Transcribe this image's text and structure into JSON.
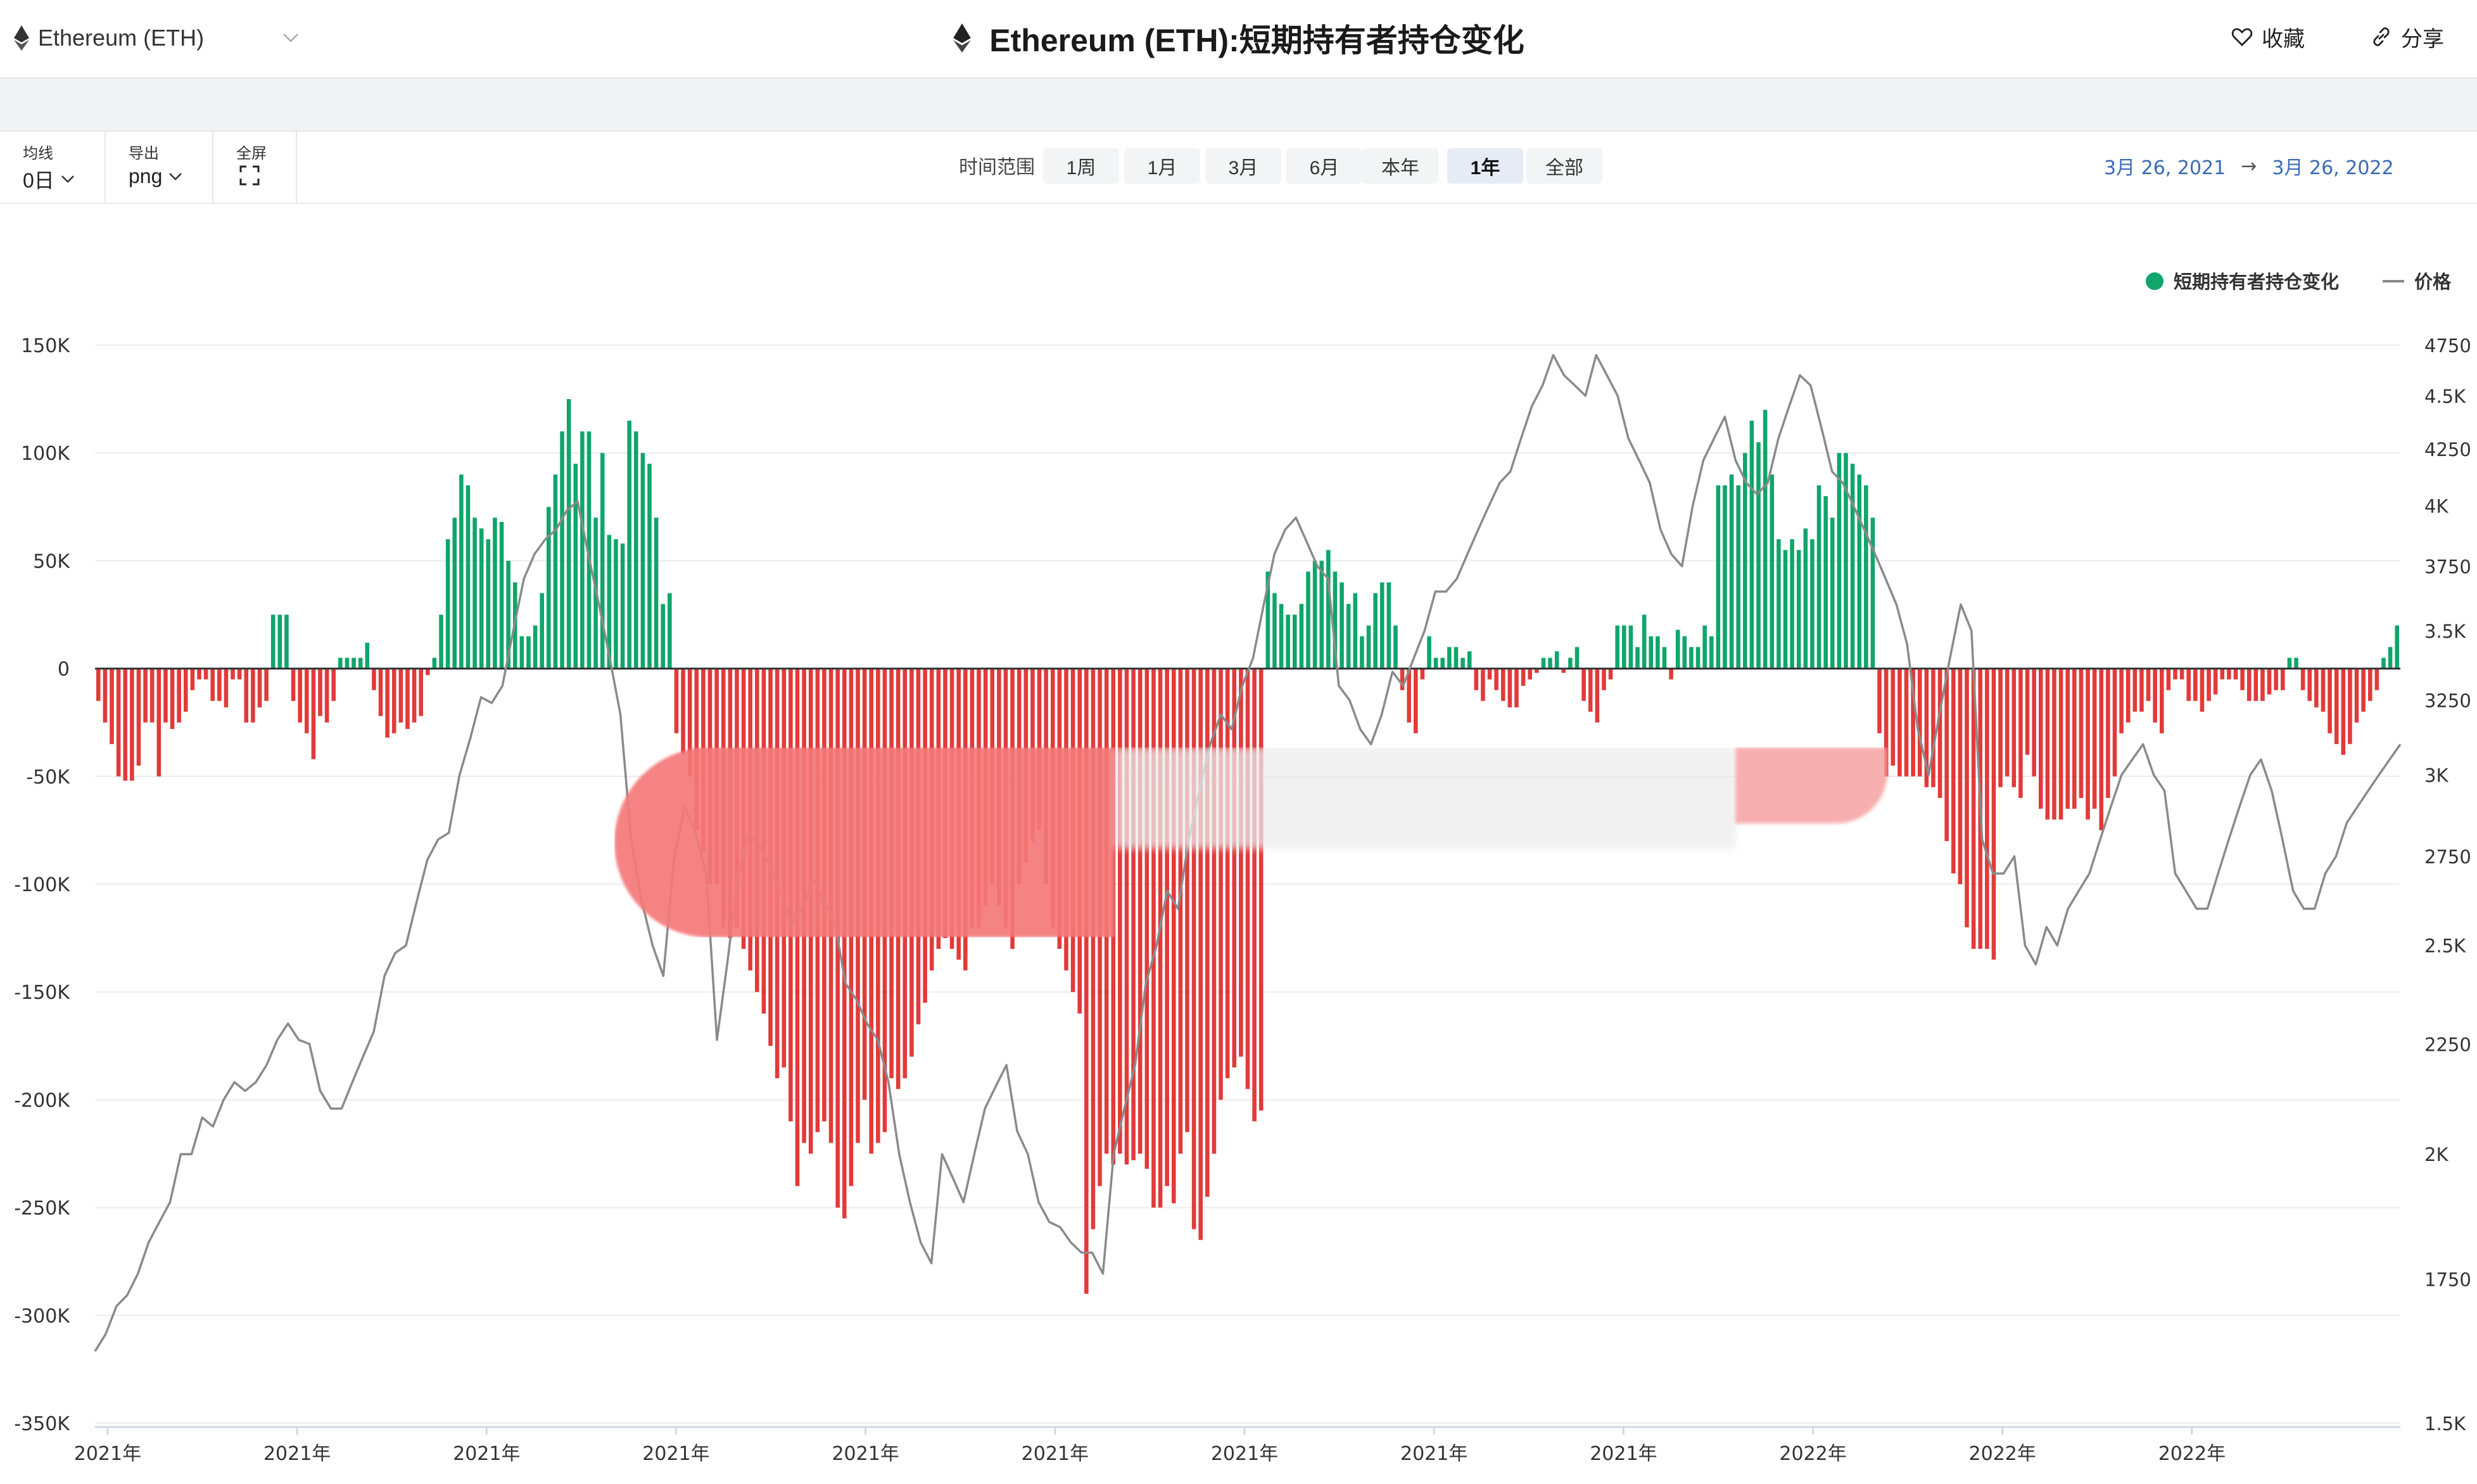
{
  "header": {
    "asset_select": "Ethereum (ETH)",
    "title": "Ethereum (ETH):短期持有者持仓变化",
    "favorite_label": "收藏",
    "share_label": "分享"
  },
  "toolbar": {
    "ma_label": "均线",
    "ma_value": "0日",
    "export_label": "导出",
    "export_value": "png",
    "fullscreen_label": "全屏",
    "range_label": "时间范围",
    "range_buttons": [
      "1周",
      "1月",
      "3月",
      "6月",
      "本年",
      "1年",
      "全部"
    ],
    "active_range": "1年",
    "date_start": "3月 26, 2021",
    "date_arrow": "→",
    "date_end": "3月 26, 2022"
  },
  "colors": {
    "positive": "#0fa56b",
    "negative": "#e23a3a",
    "price_line": "#8a8a8a",
    "active_button": "#e6ecf5",
    "date_text": "#3a6bb5"
  },
  "chart_data": {
    "type": "bar+line",
    "title": "",
    "legend_position": "top-right",
    "grid": true,
    "left_axis": {
      "ticks": [
        "150K",
        "100K",
        "50K",
        "0",
        "-50K",
        "-100K",
        "-150K",
        "-200K",
        "-250K",
        "-300K",
        "-350K"
      ],
      "tick_values": [
        150000,
        100000,
        50000,
        0,
        -50000,
        -100000,
        -150000,
        -200000,
        -250000,
        -300000,
        -350000
      ],
      "ylim": [
        -350000,
        150000
      ]
    },
    "right_axis": {
      "scale": "log",
      "ticks": [
        "4750",
        "4.5K",
        "4250",
        "4K",
        "3750",
        "3.5K",
        "3250",
        "3K",
        "2750",
        "2.5K",
        "2250",
        "2K",
        "1750",
        "1.5K"
      ],
      "tick_values": [
        4750,
        4500,
        4250,
        4000,
        3750,
        3500,
        3250,
        3000,
        2750,
        2500,
        2250,
        2000,
        1750,
        1500
      ],
      "ylim": [
        1500,
        4750
      ]
    },
    "x_tick_labels": [
      "2021年",
      "2021年",
      "2021年",
      "2021年",
      "2021年",
      "2021年",
      "2021年",
      "2021年",
      "2021年",
      "2022年",
      "2022年",
      "2022年"
    ],
    "x_tick_dates": [
      "2021-03-28",
      "2021-04-27",
      "2021-05-27",
      "2021-06-26",
      "2021-07-26",
      "2021-08-25",
      "2021-09-24",
      "2021-10-24",
      "2021-11-23",
      "2021-12-23",
      "2022-01-22",
      "2022-02-21"
    ],
    "series": [
      {
        "name": "短期持有者持仓变化",
        "type": "bar",
        "start_date": "2021-03-26",
        "end_date": "2022-03-26",
        "values": [
          -15000,
          -25000,
          -35000,
          -50000,
          -52000,
          -52000,
          -45000,
          -25000,
          -25000,
          -50000,
          -25000,
          -28000,
          -25000,
          -20000,
          -10000,
          -5000,
          -5000,
          -15000,
          -15000,
          -18000,
          -5000,
          -5000,
          -25000,
          -25000,
          -18000,
          -15000,
          25000,
          25000,
          25000,
          -15000,
          -25000,
          -30000,
          -42000,
          -22000,
          -25000,
          -15000,
          5000,
          5000,
          5000,
          5000,
          12000,
          -10000,
          -22000,
          -32000,
          -30000,
          -25000,
          -28000,
          -25000,
          -22000,
          -3000,
          5000,
          25000,
          60000,
          70000,
          90000,
          85000,
          70000,
          65000,
          60000,
          70000,
          68000,
          50000,
          40000,
          15000,
          15000,
          20000,
          35000,
          75000,
          90000,
          110000,
          125000,
          95000,
          110000,
          110000,
          70000,
          100000,
          62000,
          60000,
          58000,
          115000,
          110000,
          100000,
          95000,
          70000,
          30000,
          35000,
          -30000,
          -40000,
          -50000,
          -75000,
          -85000,
          -100000,
          -100000,
          -120000,
          -125000,
          -120000,
          -130000,
          -140000,
          -150000,
          -160000,
          -175000,
          -190000,
          -185000,
          -210000,
          -240000,
          -220000,
          -225000,
          -215000,
          -210000,
          -220000,
          -250000,
          -255000,
          -240000,
          -220000,
          -200000,
          -225000,
          -220000,
          -215000,
          -190000,
          -195000,
          -190000,
          -180000,
          -165000,
          -155000,
          -140000,
          -130000,
          -125000,
          -130000,
          -135000,
          -140000,
          -120000,
          -120000,
          -110000,
          -100000,
          -110000,
          -120000,
          -130000,
          -100000,
          -90000,
          -80000,
          -75000,
          -100000,
          -120000,
          -130000,
          -140000,
          -150000,
          -160000,
          -290000,
          -260000,
          -240000,
          -225000,
          -230000,
          -225000,
          -230000,
          -228000,
          -225000,
          -232000,
          -250000,
          -250000,
          -240000,
          -248000,
          -225000,
          -215000,
          -260000,
          -265000,
          -245000,
          -225000,
          -200000,
          -190000,
          -185000,
          -180000,
          -195000,
          -210000,
          -205000,
          45000,
          35000,
          30000,
          25000,
          25000,
          30000,
          45000,
          50000,
          50000,
          55000,
          45000,
          40000,
          30000,
          35000,
          15000,
          20000,
          35000,
          40000,
          40000,
          20000,
          -10000,
          -25000,
          -30000,
          -5000,
          15000,
          5000,
          5000,
          10000,
          10000,
          5000,
          8000,
          -10000,
          -15000,
          -5000,
          -10000,
          -15000,
          -18000,
          -18000,
          -8000,
          -5000,
          -2000,
          5000,
          5000,
          8000,
          -2000,
          5000,
          10000,
          -15000,
          -20000,
          -25000,
          -10000,
          -5000,
          20000,
          20000,
          20000,
          10000,
          25000,
          15000,
          15000,
          10000,
          -5000,
          18000,
          15000,
          10000,
          10000,
          20000,
          15000,
          85000,
          85000,
          90000,
          85000,
          100000,
          115000,
          105000,
          120000,
          90000,
          60000,
          55000,
          60000,
          55000,
          65000,
          60000,
          85000,
          80000,
          70000,
          100000,
          100000,
          95000,
          90000,
          85000,
          70000,
          -30000,
          -50000,
          -45000,
          -50000,
          -50000,
          -50000,
          -50000,
          -55000,
          -55000,
          -60000,
          -80000,
          -95000,
          -100000,
          -120000,
          -130000,
          -130000,
          -130000,
          -135000,
          -55000,
          -50000,
          -55000,
          -60000,
          -40000,
          -50000,
          -65000,
          -70000,
          -70000,
          -70000,
          -65000,
          -65000,
          -60000,
          -70000,
          -65000,
          -75000,
          -60000,
          -50000,
          -30000,
          -25000,
          -20000,
          -20000,
          -15000,
          -25000,
          -30000,
          -10000,
          -5000,
          -5000,
          -15000,
          -15000,
          -20000,
          -15000,
          -12000,
          -5000,
          -5000,
          -5000,
          -10000,
          -15000,
          -15000,
          -15000,
          -12000,
          -10000,
          -10000,
          5000,
          5000,
          -10000,
          -15000,
          -18000,
          -20000,
          -30000,
          -35000,
          -40000,
          -35000,
          -25000,
          -20000,
          -15000,
          -10000,
          5000,
          10000,
          20000
        ]
      },
      {
        "name": "价格",
        "type": "line",
        "axis": "right",
        "start_date": "2021-03-26",
        "end_date": "2022-03-26",
        "values": [
          1620,
          1650,
          1700,
          1720,
          1760,
          1820,
          1860,
          1900,
          2000,
          2000,
          2080,
          2060,
          2120,
          2160,
          2140,
          2160,
          2200,
          2260,
          2300,
          2260,
          2250,
          2140,
          2100,
          2100,
          2160,
          2220,
          2280,
          2420,
          2480,
          2500,
          2620,
          2740,
          2800,
          2820,
          3000,
          3120,
          3260,
          3240,
          3300,
          3500,
          3700,
          3800,
          3860,
          3900,
          3980,
          4020,
          3800,
          3600,
          3400,
          3200,
          2800,
          2620,
          2500,
          2420,
          2740,
          2900,
          2820,
          2700,
          2260,
          2460,
          2700,
          2820,
          2780,
          2720,
          2640,
          2560,
          2600,
          2680,
          2620,
          2560,
          2400,
          2360,
          2300,
          2260,
          2160,
          2000,
          1900,
          1820,
          1780,
          2000,
          1950,
          1900,
          2000,
          2100,
          2150,
          2200,
          2050,
          2000,
          1900,
          1860,
          1850,
          1820,
          1800,
          1800,
          1760,
          2000,
          2100,
          2200,
          2400,
          2500,
          2650,
          2600,
          2800,
          2950,
          3100,
          3200,
          3150,
          3300,
          3400,
          3600,
          3800,
          3900,
          3950,
          3850,
          3750,
          3700,
          3300,
          3250,
          3150,
          3100,
          3200,
          3350,
          3300,
          3400,
          3500,
          3650,
          3650,
          3700,
          3800,
          3900,
          4000,
          4100,
          4150,
          4300,
          4450,
          4550,
          4700,
          4600,
          4550,
          4500,
          4700,
          4600,
          4500,
          4300,
          4200,
          4100,
          3900,
          3800,
          3750,
          4000,
          4200,
          4300,
          4400,
          4200,
          4100,
          4050,
          4100,
          4300,
          4450,
          4600,
          4550,
          4350,
          4150,
          4100,
          4000,
          3900,
          3800,
          3700,
          3600,
          3450,
          3150,
          3000,
          3200,
          3400,
          3600,
          3500,
          2800,
          2700,
          2700,
          2750,
          2500,
          2450,
          2550,
          2500,
          2600,
          2650,
          2700,
          2800,
          2900,
          3000,
          3050,
          3100,
          3000,
          2950,
          2700,
          2650,
          2600,
          2600,
          2700,
          2800,
          2900,
          3000,
          3050,
          2950,
          2800,
          2650,
          2600,
          2600,
          2700,
          2750,
          2850,
          2900,
          2950,
          3000,
          3050,
          3100
        ]
      }
    ]
  }
}
